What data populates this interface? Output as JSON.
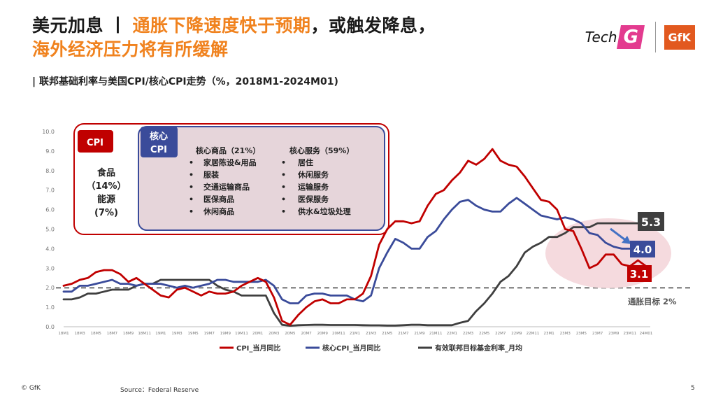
{
  "title": {
    "prefix": "美元加息",
    "separator": "丨",
    "highlight1": "通胀下降速度快于预期",
    "normal": "，或触发降息，",
    "highlight2": "海外经济压力将有所缓解"
  },
  "subtitle": "| 联邦基础利率与美国CPI/核心CPI走势（%，2018M1-2024M01)",
  "logo": {
    "tech": "Tech",
    "g": "G",
    "gfk": "GfK"
  },
  "footer": {
    "copyright": "© GfK",
    "source": "Source：Federal Reserve",
    "page": "5"
  },
  "colors": {
    "cpi": "#c00000",
    "core": "#3a4b9a",
    "fed": "#3f3f3f",
    "accent": "#f0821e",
    "box_fill": "#e6d5da"
  },
  "chart_data": {
    "type": "line",
    "ylim": [
      0,
      10
    ],
    "yticks": [
      "0.0",
      "1.0",
      "2.0",
      "3.0",
      "4.0",
      "5.0",
      "6.0",
      "7.0",
      "8.0",
      "9.0",
      "10.0"
    ],
    "xtick_labels": [
      "18M1",
      "18M3",
      "18M5",
      "18M7",
      "18M9",
      "18M11",
      "19M1",
      "19M3",
      "19M5",
      "19M7",
      "19M9",
      "19M11",
      "20M1",
      "20M3",
      "20M5",
      "20M7",
      "20M9",
      "20M11",
      "21M1",
      "21M3",
      "21M5",
      "21M7",
      "21M9",
      "21M11",
      "22M1",
      "22M3",
      "22M5",
      "22M7",
      "22M9",
      "22M11",
      "23M1",
      "23M3",
      "23M5",
      "23M7",
      "23M9",
      "23M11",
      "24M01"
    ],
    "series": [
      {
        "name": "CPI_当月同比",
        "key": "cpi",
        "values": [
          2.1,
          2.2,
          2.4,
          2.5,
          2.8,
          2.9,
          2.9,
          2.7,
          2.3,
          2.5,
          2.2,
          1.9,
          1.6,
          1.5,
          1.9,
          2.0,
          1.8,
          1.6,
          1.8,
          1.7,
          1.7,
          1.8,
          2.1,
          2.3,
          2.5,
          2.3,
          1.5,
          0.3,
          0.1,
          0.6,
          1.0,
          1.3,
          1.4,
          1.2,
          1.2,
          1.4,
          1.4,
          1.7,
          2.6,
          4.2,
          5.0,
          5.4,
          5.4,
          5.3,
          5.4,
          6.2,
          6.8,
          7.0,
          7.5,
          7.9,
          8.5,
          8.3,
          8.6,
          9.1,
          8.5,
          8.3,
          8.2,
          7.7,
          7.1,
          6.5,
          6.4,
          6.0,
          5.0,
          4.9,
          4.0,
          3.0,
          3.2,
          3.7,
          3.7,
          3.2,
          3.1,
          3.4,
          3.1
        ]
      },
      {
        "name": "核心CPI_当月同比",
        "key": "core",
        "values": [
          1.8,
          1.8,
          2.1,
          2.1,
          2.2,
          2.3,
          2.4,
          2.2,
          2.2,
          2.1,
          2.2,
          2.2,
          2.2,
          2.1,
          2.0,
          2.1,
          2.0,
          2.1,
          2.2,
          2.4,
          2.4,
          2.3,
          2.3,
          2.3,
          2.3,
          2.4,
          2.1,
          1.4,
          1.2,
          1.2,
          1.6,
          1.7,
          1.7,
          1.6,
          1.6,
          1.6,
          1.4,
          1.3,
          1.6,
          3.0,
          3.8,
          4.5,
          4.3,
          4.0,
          4.0,
          4.6,
          4.9,
          5.5,
          6.0,
          6.4,
          6.5,
          6.2,
          6.0,
          5.9,
          5.9,
          6.3,
          6.6,
          6.3,
          6.0,
          5.7,
          5.6,
          5.5,
          5.6,
          5.5,
          5.3,
          4.8,
          4.7,
          4.3,
          4.1,
          4.0,
          4.0,
          3.9,
          4.0
        ]
      },
      {
        "name": "有效联邦目标基金利率_月均",
        "key": "fed",
        "values": [
          1.4,
          1.4,
          1.5,
          1.7,
          1.7,
          1.8,
          1.9,
          1.9,
          1.9,
          2.1,
          2.2,
          2.2,
          2.4,
          2.4,
          2.4,
          2.4,
          2.4,
          2.4,
          2.4,
          2.1,
          1.9,
          1.8,
          1.6,
          1.6,
          1.6,
          1.6,
          0.7,
          0.1,
          0.05,
          0.08,
          0.09,
          0.1,
          0.1,
          0.09,
          0.09,
          0.09,
          0.09,
          0.08,
          0.07,
          0.07,
          0.06,
          0.06,
          0.08,
          0.1,
          0.1,
          0.08,
          0.08,
          0.08,
          0.08,
          0.2,
          0.3,
          0.8,
          1.2,
          1.7,
          2.3,
          2.6,
          3.1,
          3.8,
          4.1,
          4.3,
          4.6,
          4.6,
          4.8,
          5.1,
          5.1,
          5.1,
          5.3,
          5.3,
          5.3,
          5.3,
          5.3,
          5.3,
          5.3
        ]
      }
    ],
    "end_labels": {
      "cpi": "3.1",
      "core": "4.0",
      "fed": "5.3"
    },
    "target_line": {
      "value": 2.0,
      "label": "通胀目标 2%"
    },
    "legend_position": "bottom",
    "annotation": {
      "cpi_tag": "CPI",
      "cpi_items": [
        "食品",
        "（14%）",
        "能源",
        "(7%)"
      ],
      "core_tag_line1": "核心",
      "core_tag_line2": "CPI",
      "goods_header": "核心商品（21%）",
      "goods": [
        "家居陈设&用品",
        "服装",
        "交通运输商品",
        "医保商品",
        "休闲商品"
      ],
      "services_header": "核心服务（59%）",
      "services": [
        "居住",
        "休闲服务",
        "运输服务",
        "医保服务",
        "供水&垃圾处理"
      ]
    }
  }
}
